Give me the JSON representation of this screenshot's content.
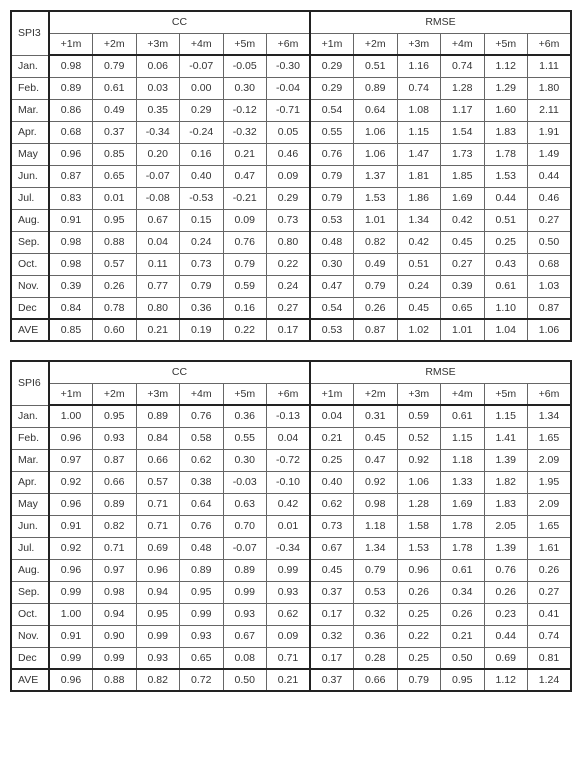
{
  "subcols": [
    "+1m",
    "+2m",
    "+3m",
    "+4m",
    "+5m",
    "+6m"
  ],
  "groups": [
    "CC",
    "RMSE"
  ],
  "tables": [
    {
      "title": "SPI3",
      "rows": [
        {
          "label": "Jan.",
          "cc": [
            "0.98",
            "0.79",
            "0.06",
            "-0.07",
            "-0.05",
            "-0.30"
          ],
          "rmse": [
            "0.29",
            "0.51",
            "1.16",
            "0.74",
            "1.12",
            "1.11"
          ]
        },
        {
          "label": "Feb.",
          "cc": [
            "0.89",
            "0.61",
            "0.03",
            "0.00",
            "0.30",
            "-0.04"
          ],
          "rmse": [
            "0.29",
            "0.89",
            "0.74",
            "1.28",
            "1.29",
            "1.80"
          ]
        },
        {
          "label": "Mar.",
          "cc": [
            "0.86",
            "0.49",
            "0.35",
            "0.29",
            "-0.12",
            "-0.71"
          ],
          "rmse": [
            "0.54",
            "0.64",
            "1.08",
            "1.17",
            "1.60",
            "2.11"
          ]
        },
        {
          "label": "Apr.",
          "cc": [
            "0.68",
            "0.37",
            "-0.34",
            "-0.24",
            "-0.32",
            "0.05"
          ],
          "rmse": [
            "0.55",
            "1.06",
            "1.15",
            "1.54",
            "1.83",
            "1.91"
          ]
        },
        {
          "label": "May",
          "cc": [
            "0.96",
            "0.85",
            "0.20",
            "0.16",
            "0.21",
            "0.46"
          ],
          "rmse": [
            "0.76",
            "1.06",
            "1.47",
            "1.73",
            "1.78",
            "1.49"
          ]
        },
        {
          "label": "Jun.",
          "cc": [
            "0.87",
            "0.65",
            "-0.07",
            "0.40",
            "0.47",
            "0.09"
          ],
          "rmse": [
            "0.79",
            "1.37",
            "1.81",
            "1.85",
            "1.53",
            "0.44"
          ]
        },
        {
          "label": "Jul.",
          "cc": [
            "0.83",
            "0.01",
            "-0.08",
            "-0.53",
            "-0.21",
            "0.29"
          ],
          "rmse": [
            "0.79",
            "1.53",
            "1.86",
            "1.69",
            "0.44",
            "0.46"
          ]
        },
        {
          "label": "Aug.",
          "cc": [
            "0.91",
            "0.95",
            "0.67",
            "0.15",
            "0.09",
            "0.73"
          ],
          "rmse": [
            "0.53",
            "1.01",
            "1.34",
            "0.42",
            "0.51",
            "0.27"
          ]
        },
        {
          "label": "Sep.",
          "cc": [
            "0.98",
            "0.88",
            "0.04",
            "0.24",
            "0.76",
            "0.80"
          ],
          "rmse": [
            "0.48",
            "0.82",
            "0.42",
            "0.45",
            "0.25",
            "0.50"
          ]
        },
        {
          "label": "Oct.",
          "cc": [
            "0.98",
            "0.57",
            "0.11",
            "0.73",
            "0.79",
            "0.22"
          ],
          "rmse": [
            "0.30",
            "0.49",
            "0.51",
            "0.27",
            "0.43",
            "0.68"
          ]
        },
        {
          "label": "Nov.",
          "cc": [
            "0.39",
            "0.26",
            "0.77",
            "0.79",
            "0.59",
            "0.24"
          ],
          "rmse": [
            "0.47",
            "0.79",
            "0.24",
            "0.39",
            "0.61",
            "1.03"
          ]
        },
        {
          "label": "Dec",
          "cc": [
            "0.84",
            "0.78",
            "0.80",
            "0.36",
            "0.16",
            "0.27"
          ],
          "rmse": [
            "0.54",
            "0.26",
            "0.45",
            "0.65",
            "1.10",
            "0.87"
          ]
        },
        {
          "label": "AVE",
          "cc": [
            "0.85",
            "0.60",
            "0.21",
            "0.19",
            "0.22",
            "0.17"
          ],
          "rmse": [
            "0.53",
            "0.87",
            "1.02",
            "1.01",
            "1.04",
            "1.06"
          ],
          "ave": true
        }
      ]
    },
    {
      "title": "SPI6",
      "rows": [
        {
          "label": "Jan.",
          "cc": [
            "1.00",
            "0.95",
            "0.89",
            "0.76",
            "0.36",
            "-0.13"
          ],
          "rmse": [
            "0.04",
            "0.31",
            "0.59",
            "0.61",
            "1.15",
            "1.34"
          ]
        },
        {
          "label": "Feb.",
          "cc": [
            "0.96",
            "0.93",
            "0.84",
            "0.58",
            "0.55",
            "0.04"
          ],
          "rmse": [
            "0.21",
            "0.45",
            "0.52",
            "1.15",
            "1.41",
            "1.65"
          ]
        },
        {
          "label": "Mar.",
          "cc": [
            "0.97",
            "0.87",
            "0.66",
            "0.62",
            "0.30",
            "-0.72"
          ],
          "rmse": [
            "0.25",
            "0.47",
            "0.92",
            "1.18",
            "1.39",
            "2.09"
          ]
        },
        {
          "label": "Apr.",
          "cc": [
            "0.92",
            "0.66",
            "0.57",
            "0.38",
            "-0.03",
            "-0.10"
          ],
          "rmse": [
            "0.40",
            "0.92",
            "1.06",
            "1.33",
            "1.82",
            "1.95"
          ]
        },
        {
          "label": "May",
          "cc": [
            "0.96",
            "0.89",
            "0.71",
            "0.64",
            "0.63",
            "0.42"
          ],
          "rmse": [
            "0.62",
            "0.98",
            "1.28",
            "1.69",
            "1.83",
            "2.09"
          ]
        },
        {
          "label": "Jun.",
          "cc": [
            "0.91",
            "0.82",
            "0.71",
            "0.76",
            "0.70",
            "0.01"
          ],
          "rmse": [
            "0.73",
            "1.18",
            "1.58",
            "1.78",
            "2.05",
            "1.65"
          ]
        },
        {
          "label": "Jul.",
          "cc": [
            "0.92",
            "0.71",
            "0.69",
            "0.48",
            "-0.07",
            "-0.34"
          ],
          "rmse": [
            "0.67",
            "1.34",
            "1.53",
            "1.78",
            "1.39",
            "1.61"
          ]
        },
        {
          "label": "Aug.",
          "cc": [
            "0.96",
            "0.97",
            "0.96",
            "0.89",
            "0.89",
            "0.99"
          ],
          "rmse": [
            "0.45",
            "0.79",
            "0.96",
            "0.61",
            "0.76",
            "0.26"
          ]
        },
        {
          "label": "Sep.",
          "cc": [
            "0.99",
            "0.98",
            "0.94",
            "0.95",
            "0.99",
            "0.93"
          ],
          "rmse": [
            "0.37",
            "0.53",
            "0.26",
            "0.34",
            "0.26",
            "0.27"
          ]
        },
        {
          "label": "Oct.",
          "cc": [
            "1.00",
            "0.94",
            "0.95",
            "0.99",
            "0.93",
            "0.62"
          ],
          "rmse": [
            "0.17",
            "0.32",
            "0.25",
            "0.26",
            "0.23",
            "0.41"
          ]
        },
        {
          "label": "Nov.",
          "cc": [
            "0.91",
            "0.90",
            "0.99",
            "0.93",
            "0.67",
            "0.09"
          ],
          "rmse": [
            "0.32",
            "0.36",
            "0.22",
            "0.21",
            "0.44",
            "0.74"
          ]
        },
        {
          "label": "Dec",
          "cc": [
            "0.99",
            "0.99",
            "0.93",
            "0.65",
            "0.08",
            "0.71"
          ],
          "rmse": [
            "0.17",
            "0.28",
            "0.25",
            "0.50",
            "0.69",
            "0.81"
          ]
        },
        {
          "label": "AVE",
          "cc": [
            "0.96",
            "0.88",
            "0.82",
            "0.72",
            "0.50",
            "0.21"
          ],
          "rmse": [
            "0.37",
            "0.66",
            "0.79",
            "0.95",
            "1.12",
            "1.24"
          ],
          "ave": true
        }
      ]
    }
  ]
}
